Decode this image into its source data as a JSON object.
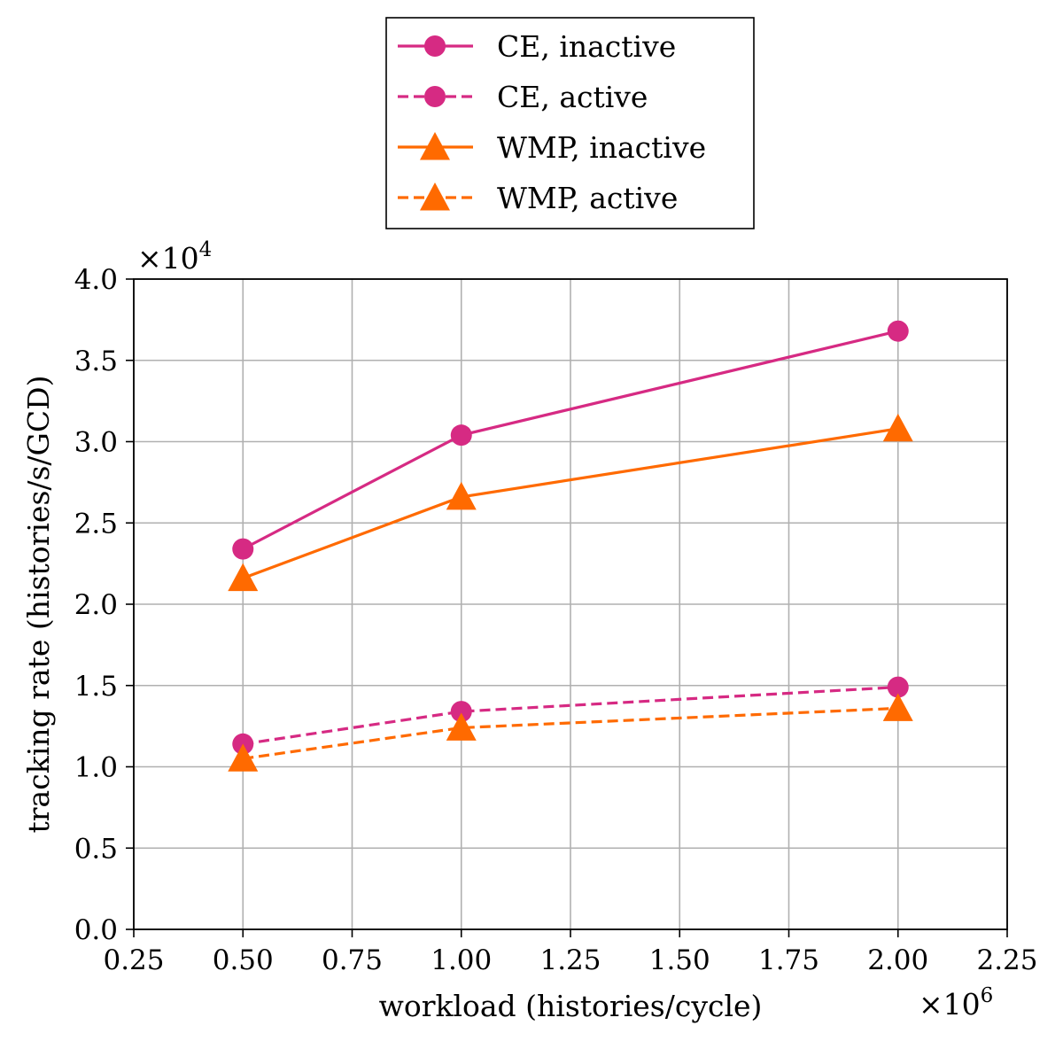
{
  "chart_data": {
    "type": "line",
    "title": "",
    "xlabel": "workload (histories/cycle)",
    "ylabel": "tracking rate (histories/s/GCD)",
    "x_multiplier_label": "×10",
    "x_multiplier_exp": "6",
    "y_multiplier_label": "×10",
    "y_multiplier_exp": "4",
    "xlim": [
      0.25,
      2.25
    ],
    "ylim": [
      0.0,
      4.0
    ],
    "x_ticks": [
      0.25,
      0.5,
      0.75,
      1.0,
      1.25,
      1.5,
      1.75,
      2.0,
      2.25
    ],
    "x_tick_labels": [
      "0.25",
      "0.50",
      "0.75",
      "1.00",
      "1.25",
      "1.50",
      "1.75",
      "2.00",
      "2.25"
    ],
    "y_ticks": [
      0.0,
      0.5,
      1.0,
      1.5,
      2.0,
      2.5,
      3.0,
      3.5,
      4.0
    ],
    "y_tick_labels": [
      "0.0",
      "0.5",
      "1.0",
      "1.5",
      "2.0",
      "2.5",
      "3.0",
      "3.5",
      "4.0"
    ],
    "grid": true,
    "legend_position": "top-center-outside",
    "x": [
      0.5,
      1.0,
      2.0
    ],
    "series": [
      {
        "name": "CE, inactive",
        "values": [
          2.34,
          3.04,
          3.68
        ],
        "color": "#d62a83",
        "dash": "solid",
        "marker": "circle"
      },
      {
        "name": "CE, active",
        "values": [
          1.14,
          1.34,
          1.49
        ],
        "color": "#d62a83",
        "dash": "dashed",
        "marker": "circle"
      },
      {
        "name": "WMP, inactive",
        "values": [
          2.16,
          2.66,
          3.08
        ],
        "color": "#ff6a00",
        "dash": "solid",
        "marker": "triangle"
      },
      {
        "name": "WMP, active",
        "values": [
          1.05,
          1.24,
          1.36
        ],
        "color": "#ff6a00",
        "dash": "dashed",
        "marker": "triangle"
      }
    ]
  }
}
